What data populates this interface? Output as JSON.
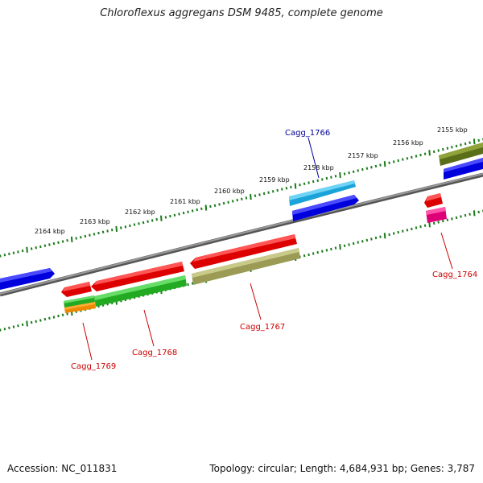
{
  "title": "Chloroflexus aggregans DSM 9485, complete genome",
  "footer": {
    "accession": "Accession: NC_011831",
    "summary": "Topology: circular; Length: 4,684,931 bp; Genes: 3,787"
  },
  "colors": {
    "backbone": "#777777",
    "tick": "#1a7a1a",
    "label_blue": "#000099",
    "label_red": "#cc0000"
  },
  "ruler_labels": [
    "2155 kbp",
    "2156 kbp",
    "2157 kbp",
    "2158 kbp",
    "2159 kbp",
    "2160 kbp",
    "2161 kbp",
    "2162 kbp",
    "2163 kbp",
    "2164 kbp"
  ],
  "gene_labels": {
    "cagg_1766": "Cagg_1766",
    "cagg_1764": "Cagg_1764",
    "cagg_1767": "Cagg_1767",
    "cagg_1768": "Cagg_1768",
    "cagg_1769": "Cagg_1769"
  }
}
